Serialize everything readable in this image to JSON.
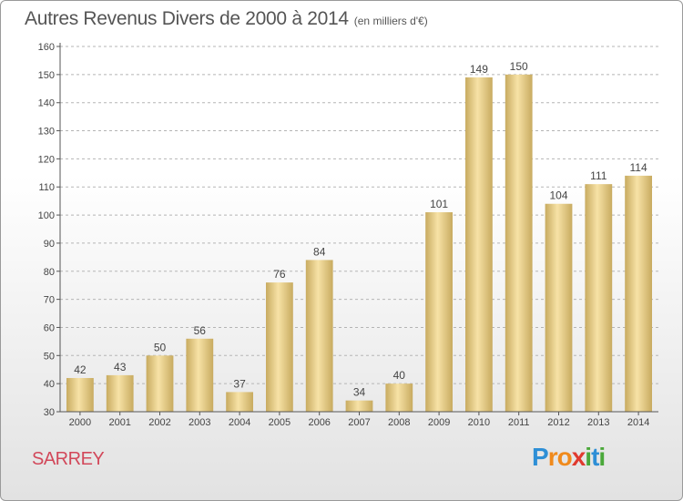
{
  "header": {
    "title": "Autres Revenus Divers de 2000 à 2014",
    "unit": "(en milliers d'€)"
  },
  "footer": {
    "city": "SARREY",
    "logo_letters": [
      {
        "ch": "P",
        "color": "#2e8fd6"
      },
      {
        "ch": "r",
        "color": "#f08a1c"
      },
      {
        "ch": "o",
        "color": "#f08a1c"
      },
      {
        "ch": "x",
        "color": "#e03a2f"
      },
      {
        "ch": "i",
        "color": "#4aa83a"
      },
      {
        "ch": "t",
        "color": "#2e8fd6"
      },
      {
        "ch": "i",
        "color": "#4aa83a"
      }
    ]
  },
  "colors": {
    "bar_light": "#f7e2a6",
    "bar_dark": "#c8ab60",
    "axis": "#555555",
    "grid": "#b5b5b5",
    "label": "#444444"
  },
  "chart_data": {
    "type": "bar",
    "title": "Autres Revenus Divers de 2000 à 2014",
    "subtitle": "(en milliers d'€)",
    "categories": [
      "2000",
      "2001",
      "2002",
      "2003",
      "2004",
      "2005",
      "2006",
      "2007",
      "2008",
      "2009",
      "2010",
      "2011",
      "2012",
      "2013",
      "2014"
    ],
    "values": [
      42,
      43,
      50,
      56,
      37,
      76,
      84,
      34,
      40,
      101,
      149,
      150,
      104,
      111,
      114
    ],
    "ylim": [
      30,
      160
    ],
    "yticks": [
      30,
      40,
      50,
      60,
      70,
      80,
      90,
      100,
      110,
      120,
      130,
      140,
      150,
      160
    ],
    "grid": true,
    "xlabel": "",
    "ylabel": ""
  }
}
